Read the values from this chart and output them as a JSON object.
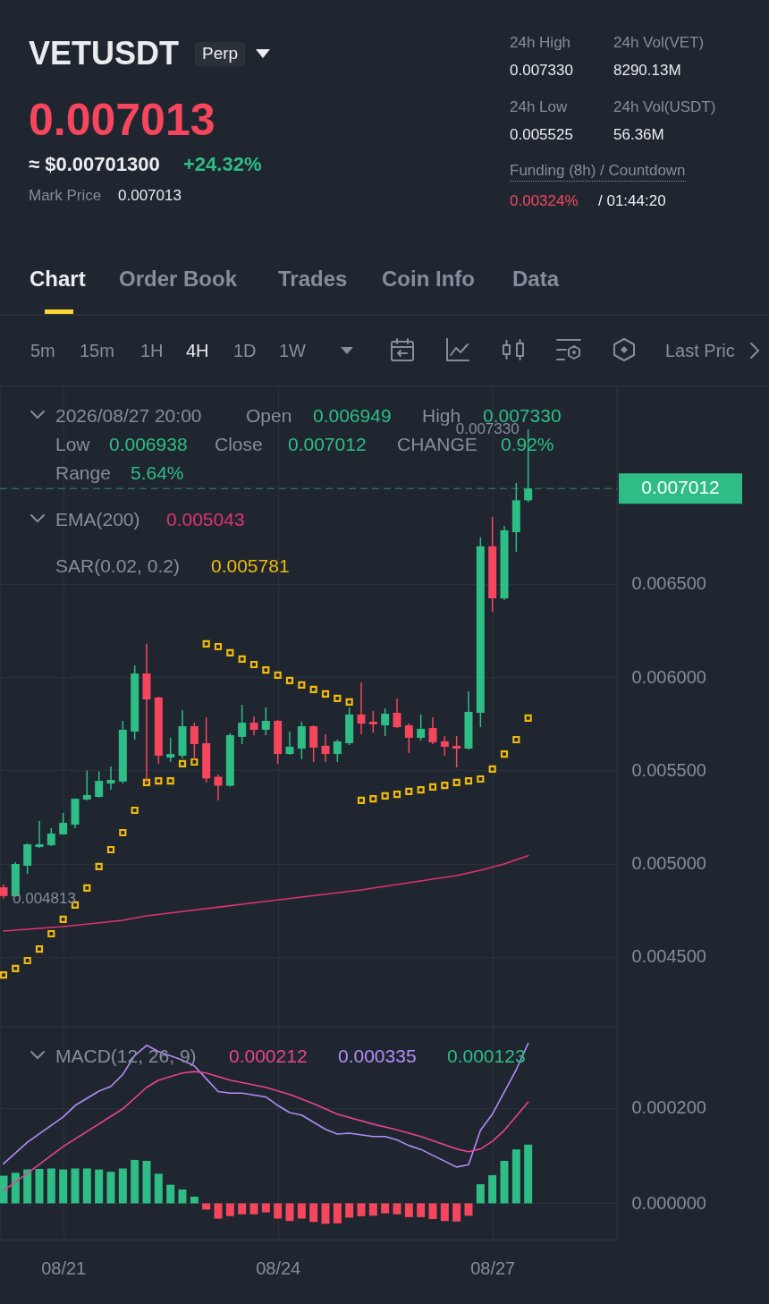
{
  "chart_data": [
    {
      "type": "other",
      "title": "VETUSDT",
      "annotations": [
        "Perp",
        "0.007013",
        "≈ $0.00701300",
        "+24.32%",
        "Mark Price",
        "0.007013",
        "24h High",
        "0.007330",
        "24h Vol(VET)",
        "8290.13M",
        "24h Low",
        "0.005525",
        "24h Vol(USDT)",
        "56.36M",
        "Funding (8h) / Countdown",
        "0.00324%",
        "/ 01:44:20",
        "Chart",
        "Order Book",
        "Trades",
        "Coin Info",
        "Data",
        "5m",
        "15m",
        "1H",
        "4H",
        "1D",
        "1W",
        "Last Pric"
      ]
    },
    {
      "type": "candlestick",
      "tick_labels": "y",
      "grid": true,
      "x": [
        "2026-08-20T04:00",
        "2026-08-20T08:00",
        "2026-08-20T12:00",
        "2026-08-20T16:00",
        "2026-08-20T20:00",
        "2026-08-21T00:00",
        "2026-08-21T04:00",
        "2026-08-21T08:00",
        "2026-08-21T12:00",
        "2026-08-21T16:00",
        "2026-08-21T20:00",
        "2026-08-22T00:00",
        "2026-08-22T04:00",
        "2026-08-22T08:00",
        "2026-08-22T12:00",
        "2026-08-22T16:00",
        "2026-08-22T20:00",
        "2026-08-23T00:00",
        "2026-08-23T04:00",
        "2026-08-23T08:00",
        "2026-08-23T12:00",
        "2026-08-23T16:00",
        "2026-08-23T20:00",
        "2026-08-24T00:00",
        "2026-08-24T04:00",
        "2026-08-24T08:00",
        "2026-08-24T12:00",
        "2026-08-24T16:00",
        "2026-08-24T20:00",
        "2026-08-25T00:00",
        "2026-08-25T04:00",
        "2026-08-25T08:00",
        "2026-08-25T12:00",
        "2026-08-25T16:00",
        "2026-08-25T20:00",
        "2026-08-26T00:00",
        "2026-08-26T04:00",
        "2026-08-26T08:00",
        "2026-08-26T12:00",
        "2026-08-26T16:00",
        "2026-08-26T20:00",
        "2026-08-27T00:00",
        "2026-08-27T04:00",
        "2026-08-27T08:00",
        "2026-08-27T12:00"
      ],
      "ohlc": [
        [
          0.004873,
          0.004888,
          0.004813,
          0.004826
        ],
        [
          0.004826,
          0.005008,
          0.004822,
          0.004998
        ],
        [
          0.004989,
          0.005109,
          0.004945,
          0.005104
        ],
        [
          0.005089,
          0.005229,
          0.005085,
          0.005104
        ],
        [
          0.005099,
          0.00519,
          0.005094,
          0.005161
        ],
        [
          0.005157,
          0.005272,
          0.005155,
          0.005219
        ],
        [
          0.005209,
          0.00535,
          0.00519,
          0.005348
        ],
        [
          0.005344,
          0.0055,
          0.00534,
          0.005368
        ],
        [
          0.005358,
          0.005495,
          0.005355,
          0.005444
        ],
        [
          0.00543,
          0.005521,
          0.005396,
          0.005449
        ],
        [
          0.00544,
          0.005766,
          0.00543,
          0.005718
        ],
        [
          0.005708,
          0.006063,
          0.005665,
          0.00602
        ],
        [
          0.00602,
          0.006179,
          0.005435,
          0.005881
        ],
        [
          0.005891,
          0.005895,
          0.005536,
          0.005579
        ],
        [
          0.005569,
          0.005675,
          0.005545,
          0.005588
        ],
        [
          0.005579,
          0.005823,
          0.005564,
          0.005737
        ],
        [
          0.005737,
          0.005756,
          0.005555,
          0.005641
        ],
        [
          0.005646,
          0.005785,
          0.005435,
          0.005457
        ],
        [
          0.005466,
          0.005478,
          0.005339,
          0.005418
        ],
        [
          0.005418,
          0.005699,
          0.005413,
          0.005689
        ],
        [
          0.00568,
          0.005852,
          0.005641,
          0.005756
        ],
        [
          0.005756,
          0.00579,
          0.005689,
          0.005718
        ],
        [
          0.005718,
          0.005838,
          0.005689,
          0.005766
        ],
        [
          0.005766,
          0.00577,
          0.005536,
          0.005588
        ],
        [
          0.005588,
          0.005708,
          0.005584,
          0.005627
        ],
        [
          0.005617,
          0.005761,
          0.00556,
          0.005737
        ],
        [
          0.005737,
          0.005742,
          0.005545,
          0.005622
        ],
        [
          0.005632,
          0.005694,
          0.005545,
          0.005588
        ],
        [
          0.005588,
          0.005665,
          0.005545,
          0.005656
        ],
        [
          0.005646,
          0.005838,
          0.005636,
          0.0058
        ],
        [
          0.0058,
          0.005972,
          0.005694,
          0.005751
        ],
        [
          0.005761,
          0.005819,
          0.005703,
          0.005747
        ],
        [
          0.005742,
          0.005833,
          0.005684,
          0.005804
        ],
        [
          0.005809,
          0.005886,
          0.005727,
          0.005732
        ],
        [
          0.005742,
          0.005751,
          0.005593,
          0.005675
        ],
        [
          0.005675,
          0.0058,
          0.00566,
          0.005723
        ],
        [
          0.005727,
          0.005785,
          0.005641,
          0.005651
        ],
        [
          0.005656,
          0.005684,
          0.005579,
          0.005627
        ],
        [
          0.005632,
          0.005684,
          0.005516,
          0.005617
        ],
        [
          0.005617,
          0.005924,
          0.005612,
          0.005814
        ],
        [
          0.005809,
          0.00675,
          0.005732,
          0.006702
        ],
        [
          0.006702,
          0.00686,
          0.006351,
          0.006423
        ],
        [
          0.006423,
          0.006812,
          0.006414,
          0.006788
        ],
        [
          0.006778,
          0.007042,
          0.006673,
          0.006949
        ],
        [
          0.006949,
          0.00733,
          0.006938,
          0.007012
        ]
      ],
      "colors": [
        "#f6465d",
        "#2ebd85",
        "#2ebd85",
        "#2ebd85",
        "#2ebd85",
        "#2ebd85",
        "#2ebd85",
        "#2ebd85",
        "#2ebd85",
        "#2ebd85",
        "#2ebd85",
        "#2ebd85",
        "#f6465d",
        "#f6465d",
        "#2ebd85",
        "#2ebd85",
        "#f6465d",
        "#f6465d",
        "#f6465d",
        "#2ebd85",
        "#2ebd85",
        "#f6465d",
        "#2ebd85",
        "#f6465d",
        "#2ebd85",
        "#2ebd85",
        "#f6465d",
        "#f6465d",
        "#2ebd85",
        "#2ebd85",
        "#f6465d",
        "#f6465d",
        "#2ebd85",
        "#f6465d",
        "#f6465d",
        "#2ebd85",
        "#f6465d",
        "#f6465d",
        "#f6465d",
        "#2ebd85",
        "#2ebd85",
        "#f6465d",
        "#2ebd85",
        "#2ebd85",
        "#2ebd85"
      ],
      "series": [
        {
          "type": "line",
          "color": "#e0336b",
          "x": [
            "2026-08-20T04:00",
            "2026-08-21T00:00",
            "2026-08-21T20:00",
            "2026-08-22T04:00",
            "2026-08-23T12:00",
            "2026-08-25T04:00",
            "2026-08-26T12:00",
            "2026-08-26T20:00",
            "2026-08-27T04:00",
            "2026-08-27T12:00"
          ],
          "values": [
            0.004638,
            0.004662,
            0.004696,
            0.00472,
            0.004782,
            0.004859,
            0.004936,
            0.004965,
            0.004998,
            0.005043
          ]
        },
        {
          "type": "scatter",
          "color": "#f0b90b",
          "marker": "square",
          "values": [
            0.004403,
            0.004437,
            0.00448,
            0.004542,
            0.004624,
            0.004701,
            0.004778,
            0.004869,
            0.004984,
            0.005075,
            0.005166,
            0.005286,
            0.005435,
            0.005444,
            0.005444,
            0.005536,
            0.005545,
            0.006179,
            0.006164,
            0.006131,
            0.006097,
            0.006068,
            0.006039,
            0.006011,
            0.005982,
            0.005958,
            0.005934,
            0.00591,
            0.005886,
            0.005867,
            0.005339,
            0.005348,
            0.005363,
            0.005372,
            0.005387,
            0.005396,
            0.005411,
            0.00542,
            0.005435,
            0.005444,
            0.005454,
            0.005507,
            0.005588,
            0.005665,
            0.005781
          ]
        }
      ],
      "xlim": [
        "2026-08-20T02:48",
        "2026-08-28T17:48"
      ],
      "xticks": [
        {
          "value": "2026-08-21T00:00",
          "label": null
        },
        {
          "value": "2026-08-24T00:00",
          "label": null
        },
        {
          "value": "2026-08-27T00:00",
          "label": null
        }
      ],
      "ylim": [
        0.004125,
        0.00756
      ],
      "yticks": [
        {
          "value": 0.0045,
          "label": "0.004500"
        },
        {
          "value": 0.005,
          "label": "0.005000"
        },
        {
          "value": 0.0055,
          "label": "0.005500"
        },
        {
          "value": 0.006,
          "label": "0.006000"
        },
        {
          "value": 0.0065,
          "label": "0.006500"
        }
      ],
      "ref_lines": [
        {
          "axis": "y",
          "value": 0.007012,
          "label": "0.007012",
          "color": "#2ebd85"
        }
      ],
      "annotations": [
        "2026/08/27 20:00",
        "Open",
        "0.006949",
        "High",
        "0.007330",
        "Low",
        "0.006938",
        "Close",
        "0.007012",
        "CHANGE",
        "0.92%",
        "Range",
        "5.64%",
        "EMA(200)",
        "0.005043",
        "SAR(0.02, 0.2)",
        "0.005781",
        {
          "text": "0.007330",
          "x": "2026-08-27T12:00",
          "y": 0.00733
        },
        {
          "text": "0.004813",
          "x": "2026-08-20T04:00",
          "y": 0.004813
        }
      ]
    },
    {
      "type": "bar",
      "grid": true,
      "x": [
        "2026-08-20T04:00",
        "2026-08-20T08:00",
        "2026-08-20T12:00",
        "2026-08-20T16:00",
        "2026-08-20T20:00",
        "2026-08-21T00:00",
        "2026-08-21T04:00",
        "2026-08-21T08:00",
        "2026-08-21T12:00",
        "2026-08-21T16:00",
        "2026-08-21T20:00",
        "2026-08-22T00:00",
        "2026-08-22T04:00",
        "2026-08-22T08:00",
        "2026-08-22T12:00",
        "2026-08-22T16:00",
        "2026-08-22T20:00",
        "2026-08-23T00:00",
        "2026-08-23T04:00",
        "2026-08-23T08:00",
        "2026-08-23T12:00",
        "2026-08-23T16:00",
        "2026-08-23T20:00",
        "2026-08-24T00:00",
        "2026-08-24T04:00",
        "2026-08-24T08:00",
        "2026-08-24T12:00",
        "2026-08-24T16:00",
        "2026-08-24T20:00",
        "2026-08-25T00:00",
        "2026-08-25T04:00",
        "2026-08-25T08:00",
        "2026-08-25T12:00",
        "2026-08-25T16:00",
        "2026-08-25T20:00",
        "2026-08-26T00:00",
        "2026-08-26T04:00",
        "2026-08-26T08:00",
        "2026-08-26T12:00",
        "2026-08-26T16:00",
        "2026-08-26T20:00",
        "2026-08-27T00:00",
        "2026-08-27T04:00",
        "2026-08-27T08:00",
        "2026-08-27T12:00"
      ],
      "values": [
        5.8e-05,
        6.4e-05,
        7.1e-05,
        7.2e-05,
        7.3e-05,
        7.1e-05,
        7.3e-05,
        7.3e-05,
        7.1e-05,
        6.6e-05,
        7.3e-05,
        9.1e-05,
        8.9e-05,
        6.2e-05,
        3.9e-05,
        2.9e-05,
        1.4e-05,
        -1.3e-05,
        -3.2e-05,
        -2.7e-05,
        -2.3e-05,
        -2.3e-05,
        -1.9e-05,
        -3.2e-05,
        -3.7e-05,
        -3.2e-05,
        -3.9e-05,
        -4.3e-05,
        -4.2e-05,
        -3e-05,
        -2.7e-05,
        -2.6e-05,
        -2.1e-05,
        -2.3e-05,
        -2.9e-05,
        -2.9e-05,
        -3.3e-05,
        -3.7e-05,
        -3.8e-05,
        -2.6e-05,
        4e-05,
        5.9e-05,
        8.9e-05,
        0.000113,
        0.000123
      ],
      "colors": [
        "#2ebd85",
        "#2ebd85",
        "#2ebd85",
        "#2ebd85",
        "#2ebd85",
        "#2ebd85",
        "#2ebd85",
        "#2ebd85",
        "#2ebd85",
        "#2ebd85",
        "#2ebd85",
        "#2ebd85",
        "#2ebd85",
        "#2ebd85",
        "#2ebd85",
        "#2ebd85",
        "#2ebd85",
        "#f6465d",
        "#f6465d",
        "#f6465d",
        "#f6465d",
        "#f6465d",
        "#f6465d",
        "#f6465d",
        "#f6465d",
        "#f6465d",
        "#f6465d",
        "#f6465d",
        "#f6465d",
        "#f6465d",
        "#f6465d",
        "#f6465d",
        "#f6465d",
        "#f6465d",
        "#f6465d",
        "#f6465d",
        "#f6465d",
        "#f6465d",
        "#f6465d",
        "#f6465d",
        "#2ebd85",
        "#2ebd85",
        "#2ebd85",
        "#2ebd85",
        "#2ebd85"
      ],
      "series": [
        {
          "type": "line",
          "color": "#b28cf5",
          "x": [
            "2026-08-20T04:00",
            "2026-08-20T12:00",
            "2026-08-21T00:00",
            "2026-08-21T04:00",
            "2026-08-21T12:00",
            "2026-08-21T16:00",
            "2026-08-21T20:00",
            "2026-08-22T00:00",
            "2026-08-22T04:00",
            "2026-08-22T08:00",
            "2026-08-22T16:00",
            "2026-08-22T20:00",
            "2026-08-23T00:00",
            "2026-08-23T04:00",
            "2026-08-23T08:00",
            "2026-08-23T12:00",
            "2026-08-23T20:00",
            "2026-08-24T00:00",
            "2026-08-24T04:00",
            "2026-08-24T08:00",
            "2026-08-24T16:00",
            "2026-08-24T20:00",
            "2026-08-25T00:00",
            "2026-08-25T08:00",
            "2026-08-25T12:00",
            "2026-08-25T16:00",
            "2026-08-25T20:00",
            "2026-08-26T00:00",
            "2026-08-26T12:00",
            "2026-08-26T16:00",
            "2026-08-26T20:00",
            "2026-08-27T00:00",
            "2026-08-27T08:00",
            "2026-08-27T12:00"
          ],
          "values": [
            8.3e-05,
            0.000128,
            0.000181,
            0.000205,
            0.000235,
            0.000245,
            0.00027,
            0.00031,
            0.000331,
            0.000318,
            0.0003,
            0.000288,
            0.000261,
            0.000234,
            0.000231,
            0.000231,
            0.000223,
            0.000205,
            0.00019,
            0.000185,
            0.000155,
            0.000145,
            0.000147,
            0.00014,
            0.00014,
            0.000133,
            0.000121,
            0.000113,
            7.6e-05,
            8.1e-05,
            0.000153,
            0.000187,
            0.00028,
            0.000335
          ]
        },
        {
          "type": "line",
          "color": "#e84393",
          "x": [
            "2026-08-20T04:00",
            "2026-08-20T12:00",
            "2026-08-21T00:00",
            "2026-08-21T20:00",
            "2026-08-22T04:00",
            "2026-08-22T08:00",
            "2026-08-22T16:00",
            "2026-08-22T20:00",
            "2026-08-23T00:00",
            "2026-08-23T08:00",
            "2026-08-23T20:00",
            "2026-08-24T04:00",
            "2026-08-24T12:00",
            "2026-08-24T20:00",
            "2026-08-25T08:00",
            "2026-08-25T16:00",
            "2026-08-26T00:00",
            "2026-08-26T12:00",
            "2026-08-26T16:00",
            "2026-08-26T20:00",
            "2026-08-27T00:00",
            "2026-08-27T04:00",
            "2026-08-27T12:00"
          ],
          "values": [
            2.7e-05,
            6.3e-05,
            0.000119,
            0.000198,
            0.000243,
            0.000258,
            0.000273,
            0.000276,
            0.000273,
            0.000258,
            0.000243,
            0.000228,
            0.000209,
            0.000187,
            0.000166,
            0.000154,
            0.00014,
            0.000114,
            0.000108,
            0.000114,
            0.00013,
            0.000153,
            0.000212
          ]
        }
      ],
      "xlim": [
        "2026-08-20T02:48",
        "2026-08-28T17:48"
      ],
      "xticks": [
        {
          "value": "2026-08-21T00:00",
          "label": "08/21"
        },
        {
          "value": "2026-08-24T00:00",
          "label": "08/24"
        },
        {
          "value": "2026-08-27T00:00",
          "label": "08/27"
        }
      ],
      "ylim": [
        -7.6e-05,
        0.00037
      ],
      "yticks": [
        {
          "value": 0,
          "label": "0.000000"
        },
        {
          "value": 0.0002,
          "label": "0.000200"
        }
      ],
      "annotations": [
        "MACD(12, 26, 9)",
        "0.000212",
        "0.000335",
        "0.000123"
      ]
    }
  ]
}
